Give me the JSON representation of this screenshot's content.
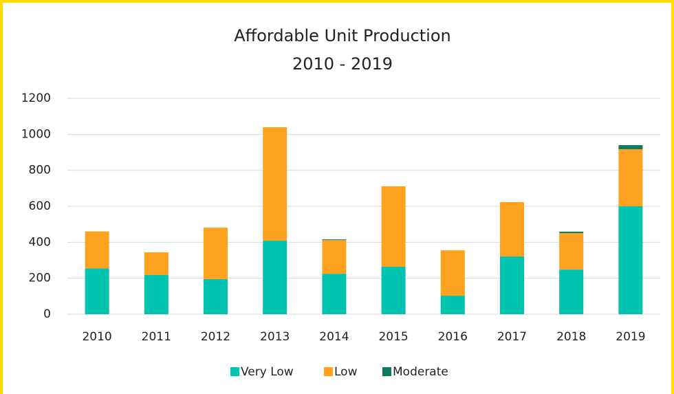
{
  "chart_data": {
    "type": "bar",
    "stacked": true,
    "title": "Affordable Unit Production",
    "subtitle": "2010 - 2019",
    "categories": [
      "2010",
      "2011",
      "2012",
      "2013",
      "2014",
      "2015",
      "2016",
      "2017",
      "2018",
      "2019"
    ],
    "series": [
      {
        "name": "Very Low",
        "color": "#00c4b0",
        "values": [
          255,
          218,
          195,
          409,
          225,
          264,
          103,
          321,
          248,
          600
        ]
      },
      {
        "name": "Low",
        "color": "#ffa21f",
        "values": [
          205,
          126,
          286,
          630,
          187,
          447,
          252,
          302,
          203,
          317
        ]
      },
      {
        "name": "Moderate",
        "color": "#0f7a63",
        "values": [
          0,
          0,
          0,
          0,
          4,
          0,
          0,
          0,
          8,
          23
        ]
      }
    ],
    "ylim": [
      0,
      1200
    ],
    "yticks": [
      0,
      200,
      400,
      600,
      800,
      1000,
      1200
    ],
    "grid": true,
    "legend": "bottom"
  }
}
